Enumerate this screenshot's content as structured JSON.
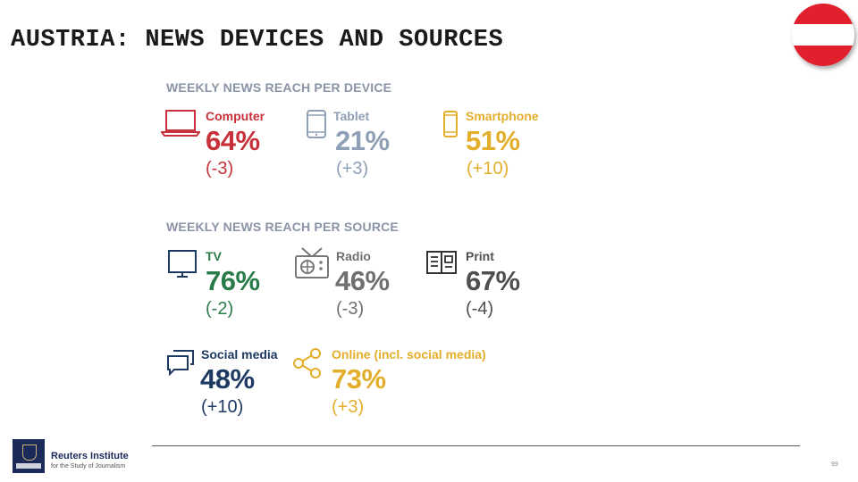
{
  "title": "AUSTRIA: NEWS DEVICES AND SOURCES",
  "colors": {
    "red": "#c8313a",
    "blue": "#8fa0b6",
    "gold": "#e3ae2b",
    "green": "#2a7b4a",
    "gray": "#6f6f6f",
    "dark": "#4f4f4f",
    "navy": "#1e3a63"
  },
  "devices": {
    "heading": "WEEKLY NEWS REACH PER DEVICE",
    "items": [
      {
        "label": "Computer",
        "value": "64%",
        "change": "(-3)",
        "icon": "laptop-icon"
      },
      {
        "label": "Tablet",
        "value": "21%",
        "change": "(+3)",
        "icon": "tablet-icon"
      },
      {
        "label": "Smartphone",
        "value": "51%",
        "change": "(+10)",
        "icon": "smartphone-icon"
      }
    ]
  },
  "sources": {
    "heading": "WEEKLY NEWS REACH PER SOURCE",
    "items": [
      {
        "label": "TV",
        "value": "76%",
        "change": "(-2)",
        "icon": "tv-icon"
      },
      {
        "label": "Radio",
        "value": "46%",
        "change": "(-3)",
        "icon": "radio-icon"
      },
      {
        "label": "Print",
        "value": "67%",
        "change": "(-4)",
        "icon": "newspaper-icon"
      },
      {
        "label": "Social media",
        "value": "48%",
        "change": "(+10)",
        "icon": "chat-bubbles-icon"
      },
      {
        "label": "Online (incl. social media)",
        "value": "73%",
        "change": "(+3)",
        "icon": "share-icon"
      }
    ]
  },
  "footer": {
    "institute": "Reuters Institute",
    "subtitle": "for the Study of Journalism",
    "page_number": "99"
  }
}
